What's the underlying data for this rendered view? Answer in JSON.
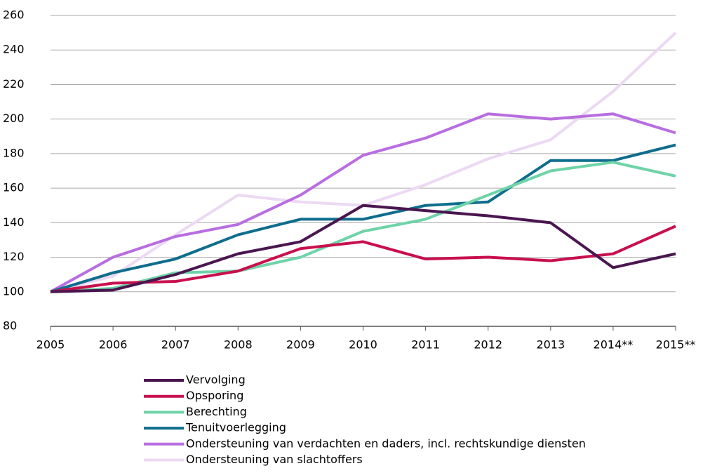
{
  "chart_data": {
    "type": "line",
    "categories": [
      "2005",
      "2006",
      "2007",
      "2008",
      "2009",
      "2010",
      "2011",
      "2012",
      "2013",
      "2014**",
      "2015**"
    ],
    "series": [
      {
        "name": "Vervolging",
        "color": "#4a1650",
        "values": [
          100,
          101,
          110,
          122,
          129,
          150,
          147,
          144,
          140,
          114,
          122
        ]
      },
      {
        "name": "Opsporing",
        "color": "#c8104e",
        "values": [
          100,
          105,
          106,
          112,
          125,
          129,
          119,
          120,
          118,
          122,
          138
        ]
      },
      {
        "name": "Berechting",
        "color": "#6fd3a8",
        "values": [
          100,
          102,
          111,
          112,
          120,
          135,
          142,
          156,
          170,
          175,
          167
        ]
      },
      {
        "name": "Tenuitvoerlegging",
        "color": "#0f6d8c",
        "values": [
          100,
          111,
          119,
          133,
          142,
          142,
          150,
          152,
          176,
          176,
          185
        ]
      },
      {
        "name": "Ondersteuning van verdachten en daders, incl. rechtskundige diensten",
        "color": "#b86ee0",
        "values": [
          100,
          120,
          132,
          139,
          156,
          179,
          189,
          203,
          200,
          203,
          192
        ]
      },
      {
        "name": "Ondersteuning van slachtoffers",
        "color": "#ecd9f3",
        "values": [
          100,
          109,
          133,
          156,
          152,
          150,
          162,
          177,
          188,
          216,
          250
        ]
      }
    ],
    "ylim": [
      80,
      260
    ],
    "yticks": [
      80,
      100,
      120,
      140,
      160,
      180,
      200,
      220,
      240,
      260
    ],
    "grid": true
  }
}
